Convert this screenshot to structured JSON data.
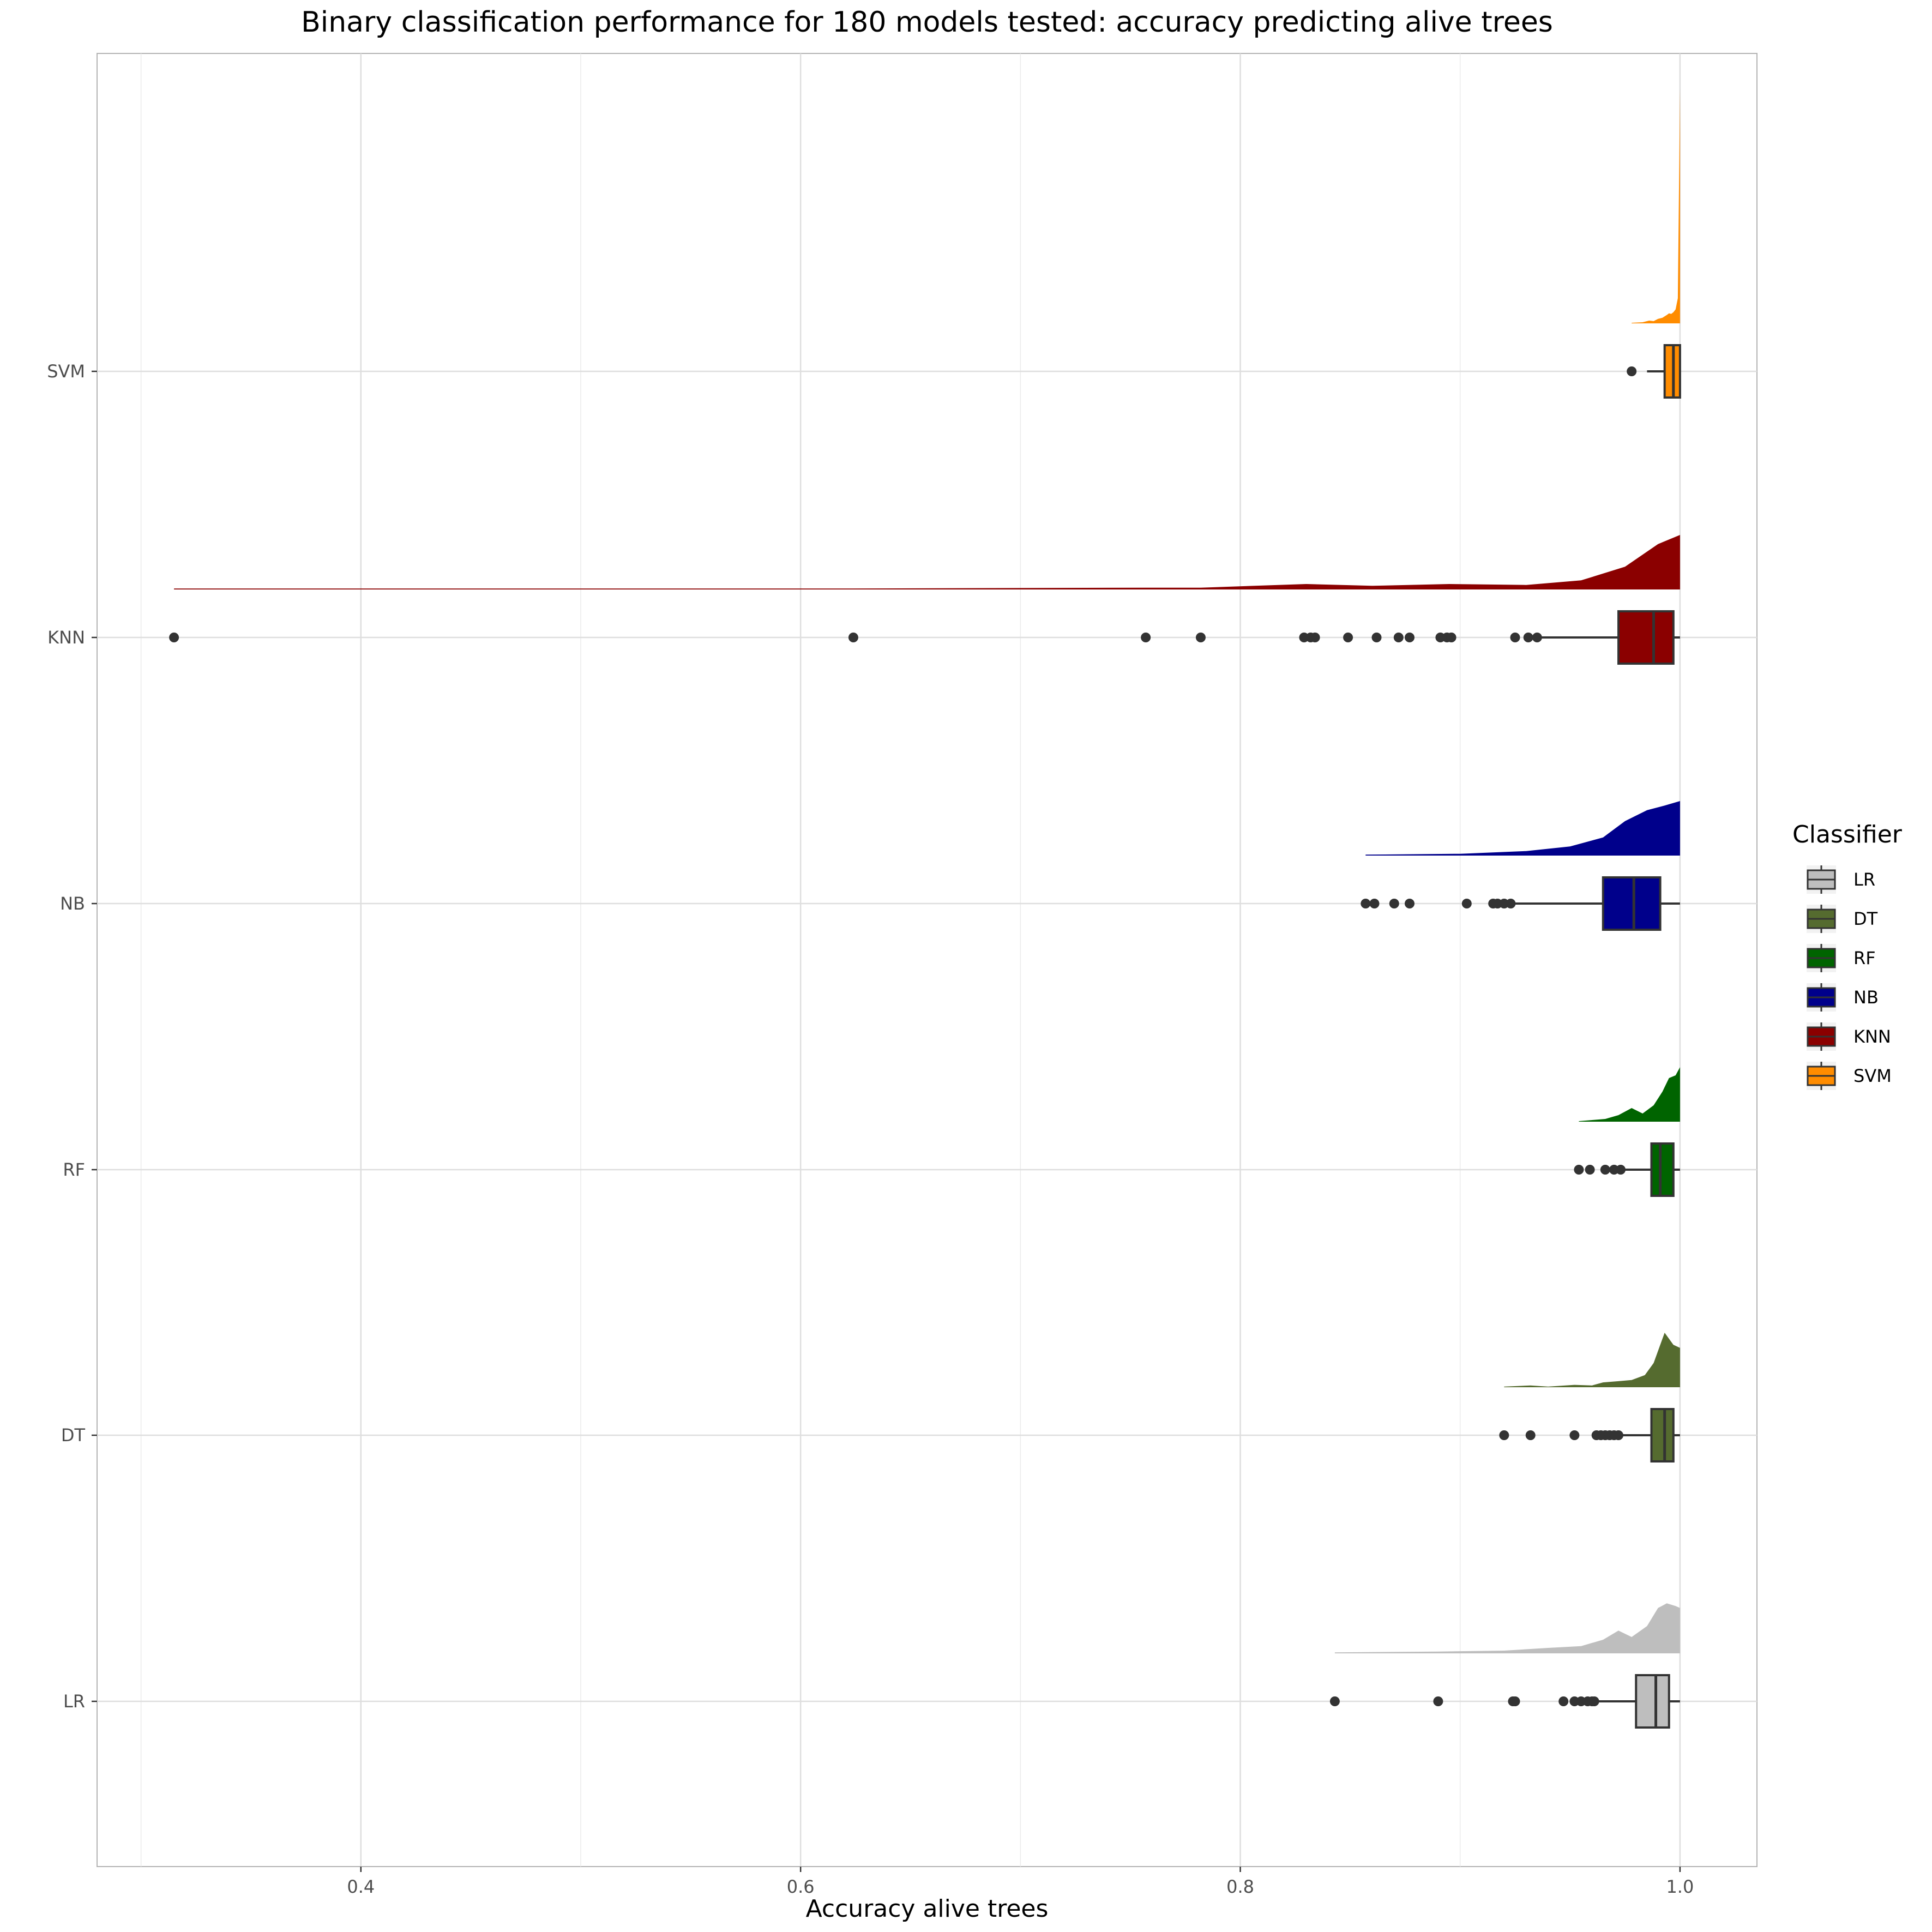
{
  "chart_data": {
    "type": "raincloud",
    "title": "Binary classification performance for 180 models tested: accuracy predicting alive trees",
    "xlabel": "Accuracy alive trees",
    "ylabel": "",
    "xlim": [
      0.28,
      1.035
    ],
    "xticks": [
      0.4,
      0.6,
      0.8,
      1.0
    ],
    "xtick_labels": [
      "0.4",
      "0.6",
      "0.8",
      "1.0"
    ],
    "grid": true,
    "legend": {
      "title": "Classifier",
      "placement": "right",
      "entries": [
        "LR",
        "DT",
        "RF",
        "NB",
        "KNN",
        "SVM"
      ]
    },
    "categories": [
      "LR",
      "DT",
      "RF",
      "NB",
      "KNN",
      "SVM"
    ],
    "series": [
      {
        "name": "LR",
        "color": "#BEBEBE",
        "box": {
          "q1": 0.98,
          "median": 0.989,
          "q3": 0.995,
          "whisker_low": 0.963,
          "whisker_high": 1.0
        },
        "outliers": [
          0.843,
          0.89,
          0.924,
          0.925,
          0.947,
          0.952,
          0.955,
          0.958,
          0.96,
          0.961
        ],
        "density": [
          [
            0.843,
            0.01
          ],
          [
            0.89,
            0.02
          ],
          [
            0.92,
            0.03
          ],
          [
            0.94,
            0.06
          ],
          [
            0.955,
            0.08
          ],
          [
            0.965,
            0.15
          ],
          [
            0.972,
            0.25
          ],
          [
            0.978,
            0.18
          ],
          [
            0.985,
            0.3
          ],
          [
            0.99,
            0.5
          ],
          [
            0.994,
            0.55
          ],
          [
            0.998,
            0.52
          ],
          [
            1.0,
            0.5
          ]
        ]
      },
      {
        "name": "DT",
        "color": "#556B2F",
        "box": {
          "q1": 0.987,
          "median": 0.993,
          "q3": 0.997,
          "whisker_low": 0.972,
          "whisker_high": 1.0
        },
        "outliers": [
          0.92,
          0.932,
          0.952,
          0.962,
          0.964,
          0.966,
          0.968,
          0.97,
          0.972
        ],
        "density": [
          [
            0.92,
            0.01
          ],
          [
            0.932,
            0.03
          ],
          [
            0.94,
            0.01
          ],
          [
            0.952,
            0.04
          ],
          [
            0.96,
            0.03
          ],
          [
            0.965,
            0.08
          ],
          [
            0.972,
            0.1
          ],
          [
            0.978,
            0.12
          ],
          [
            0.984,
            0.2
          ],
          [
            0.988,
            0.4
          ],
          [
            0.993,
            0.9
          ],
          [
            0.997,
            0.7
          ],
          [
            1.0,
            0.65
          ]
        ]
      },
      {
        "name": "RF",
        "color": "#006400",
        "box": {
          "q1": 0.987,
          "median": 0.991,
          "q3": 0.997,
          "whisker_low": 0.973,
          "whisker_high": 1.0
        },
        "outliers": [
          0.954,
          0.959,
          0.966,
          0.97,
          0.973
        ],
        "density": [
          [
            0.954,
            0.01
          ],
          [
            0.96,
            0.03
          ],
          [
            0.966,
            0.05
          ],
          [
            0.972,
            0.12
          ],
          [
            0.978,
            0.25
          ],
          [
            0.983,
            0.15
          ],
          [
            0.988,
            0.3
          ],
          [
            0.992,
            0.55
          ],
          [
            0.995,
            0.8
          ],
          [
            0.998,
            0.85
          ],
          [
            1.0,
            1.0
          ]
        ]
      },
      {
        "name": "NB",
        "color": "#00008B",
        "box": {
          "q1": 0.965,
          "median": 0.979,
          "q3": 0.991,
          "whisker_low": 0.925,
          "whisker_high": 1.0
        },
        "outliers": [
          0.857,
          0.861,
          0.87,
          0.877,
          0.903,
          0.915,
          0.917,
          0.92,
          0.923
        ],
        "density": [
          [
            0.857,
            0.01
          ],
          [
            0.9,
            0.02
          ],
          [
            0.93,
            0.05
          ],
          [
            0.95,
            0.1
          ],
          [
            0.965,
            0.2
          ],
          [
            0.975,
            0.38
          ],
          [
            0.985,
            0.5
          ],
          [
            0.993,
            0.55
          ],
          [
            1.0,
            0.6
          ]
        ]
      },
      {
        "name": "KNN",
        "color": "#8B0000",
        "box": {
          "q1": 0.972,
          "median": 0.988,
          "q3": 0.997,
          "whisker_low": 0.935,
          "whisker_high": 1.0
        },
        "outliers": [
          0.315,
          0.624,
          0.757,
          0.782,
          0.829,
          0.832,
          0.834,
          0.849,
          0.862,
          0.872,
          0.877,
          0.891,
          0.894,
          0.896,
          0.925,
          0.931,
          0.935
        ],
        "density": [
          [
            0.315,
            0.01
          ],
          [
            0.624,
            0.01
          ],
          [
            0.757,
            0.02
          ],
          [
            0.782,
            0.02
          ],
          [
            0.83,
            0.06
          ],
          [
            0.86,
            0.04
          ],
          [
            0.895,
            0.06
          ],
          [
            0.93,
            0.05
          ],
          [
            0.955,
            0.1
          ],
          [
            0.975,
            0.25
          ],
          [
            0.99,
            0.5
          ],
          [
            1.0,
            0.6
          ]
        ]
      },
      {
        "name": "SVM",
        "color": "#FF8C00",
        "box": {
          "q1": 0.993,
          "median": 0.997,
          "q3": 1.0,
          "whisker_low": 0.985,
          "whisker_high": 1.0
        },
        "outliers": [
          0.978
        ],
        "density": [
          [
            0.978,
            0.01
          ],
          [
            0.983,
            0.02
          ],
          [
            0.986,
            0.05
          ],
          [
            0.988,
            0.04
          ],
          [
            0.99,
            0.08
          ],
          [
            0.992,
            0.1
          ],
          [
            0.994,
            0.15
          ],
          [
            0.995,
            0.18
          ],
          [
            0.996,
            0.17
          ],
          [
            0.997,
            0.2
          ],
          [
            0.998,
            0.25
          ],
          [
            0.999,
            0.45
          ],
          [
            1.0,
            4.2
          ]
        ]
      }
    ]
  }
}
